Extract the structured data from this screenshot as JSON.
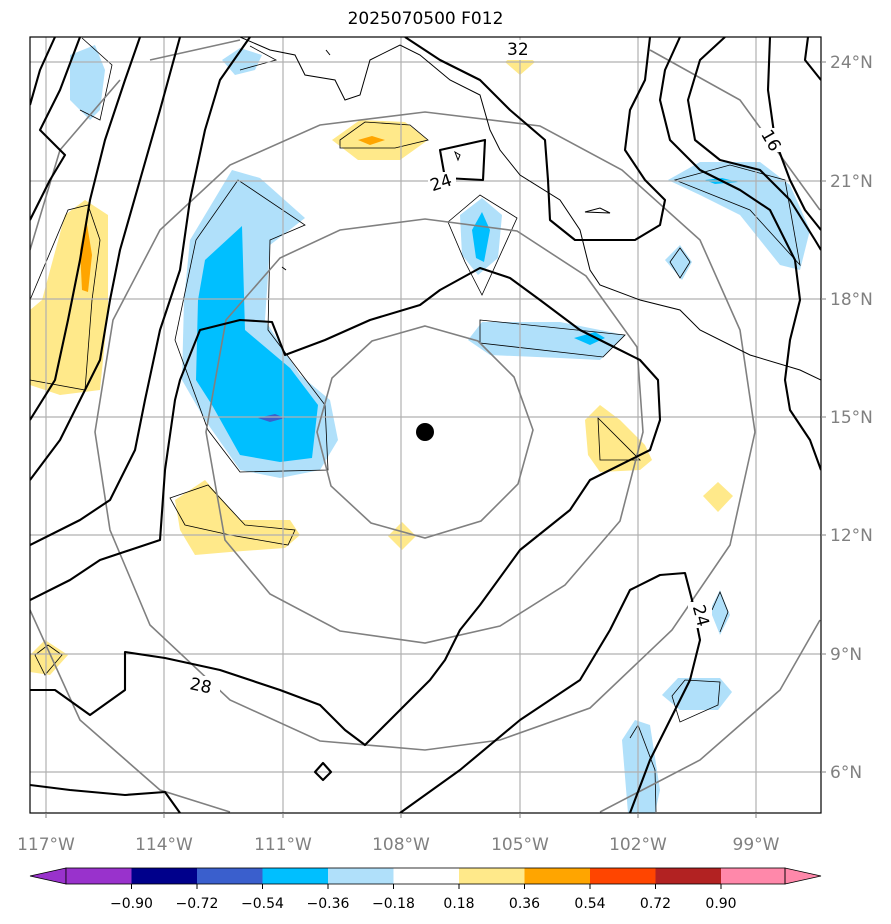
{
  "title": "2025070500 F012",
  "map": {
    "lon_ticks": [
      "117°W",
      "114°W",
      "111°W",
      "108°W",
      "105°W",
      "102°W",
      "99°W"
    ],
    "lat_ticks": [
      "24°N",
      "21°N",
      "18°N",
      "15°N",
      "12°N",
      "9°N",
      "6°N"
    ],
    "contour_labels": [
      "32",
      "24",
      "16",
      "24",
      "28"
    ],
    "storm_center": {
      "lat": 14.6,
      "lon": -107.5,
      "symbol": "filled-circle"
    }
  },
  "colorbar": {
    "tick_labels": [
      "−0.90",
      "−0.72",
      "−0.54",
      "−0.36",
      "−0.18",
      "0.18",
      "0.36",
      "0.54",
      "0.72",
      "0.90"
    ],
    "colors": [
      "#9932cc",
      "#00008b",
      "#3a5fcd",
      "#00bfff",
      "#b0e0fa",
      "#ffffff",
      "#ffe98a",
      "#ffa500",
      "#ff4500",
      "#b22222",
      "#ff88aa"
    ],
    "extend": "both"
  }
}
